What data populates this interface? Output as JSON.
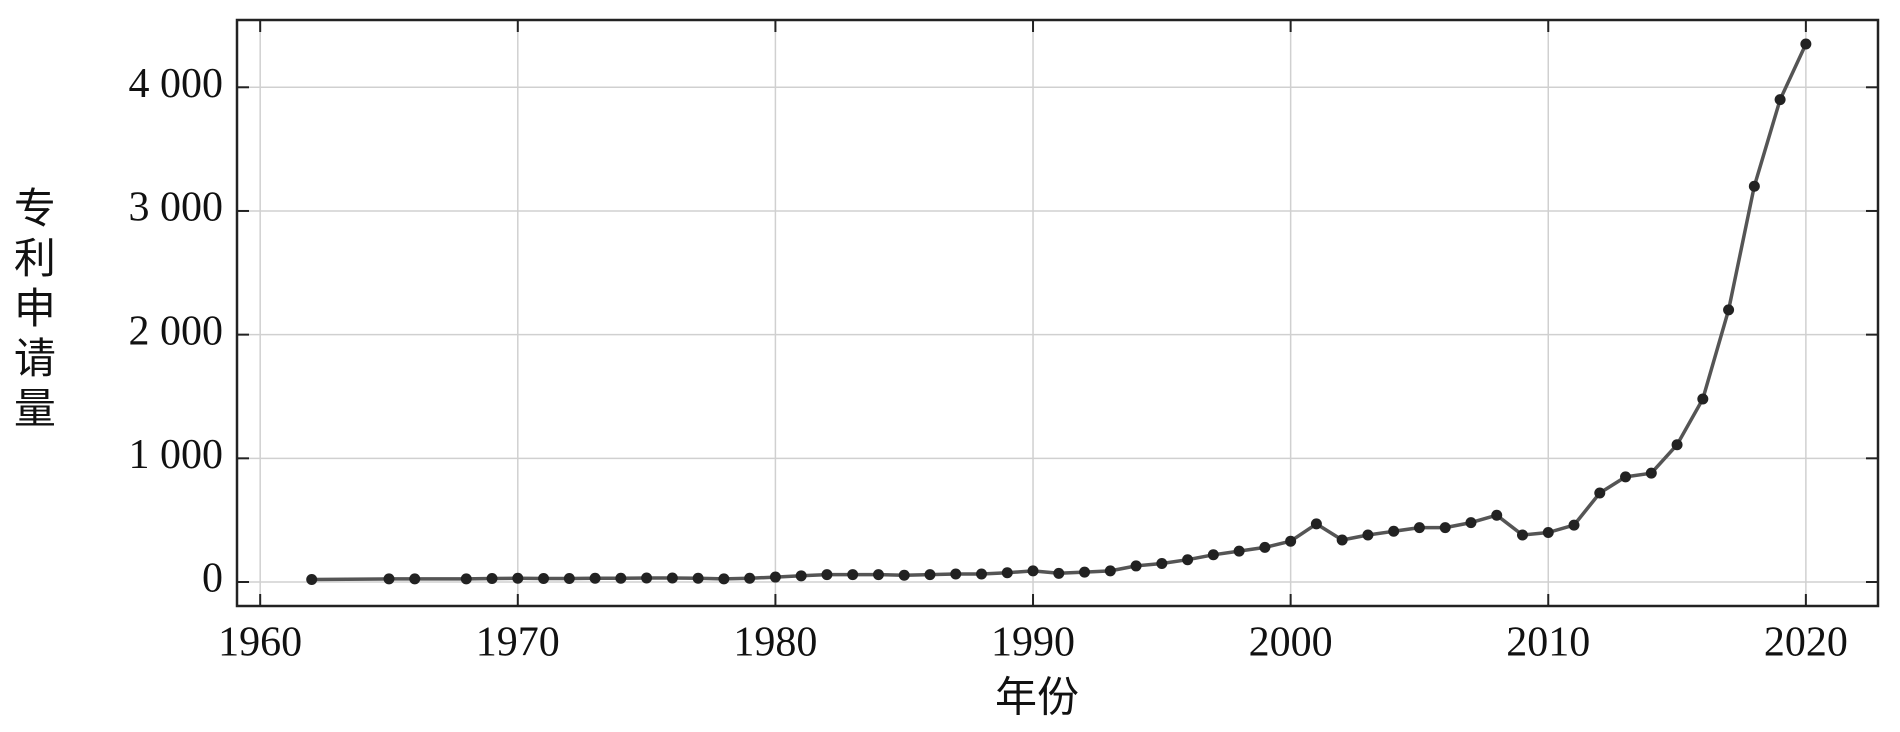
{
  "chart_data": {
    "type": "line",
    "x_label": "年份",
    "y_label": "专利申请量",
    "x": [
      1962,
      1965,
      1966,
      1968,
      1969,
      1970,
      1971,
      1972,
      1973,
      1974,
      1975,
      1976,
      1977,
      1978,
      1979,
      1980,
      1981,
      1982,
      1983,
      1984,
      1985,
      1986,
      1987,
      1988,
      1989,
      1990,
      1991,
      1992,
      1993,
      1994,
      1995,
      1996,
      1997,
      1998,
      1999,
      2000,
      2001,
      2002,
      2003,
      2004,
      2005,
      2006,
      2007,
      2008,
      2009,
      2010,
      2011,
      2012,
      2013,
      2014,
      2015,
      2016,
      2017,
      2018,
      2019,
      2020
    ],
    "values": [
      20,
      25,
      25,
      25,
      28,
      30,
      28,
      28,
      30,
      30,
      32,
      32,
      30,
      25,
      30,
      40,
      50,
      60,
      60,
      60,
      55,
      60,
      65,
      65,
      75,
      90,
      70,
      80,
      90,
      130,
      150,
      180,
      220,
      250,
      280,
      330,
      470,
      340,
      380,
      410,
      440,
      440,
      480,
      540,
      380,
      400,
      460,
      720,
      850,
      880,
      1110,
      1480,
      2200,
      3200,
      3900,
      4350
    ],
    "color": "#555555",
    "xlim": [
      1959.1,
      2022.8
    ],
    "xticks": [
      1960,
      1970,
      1980,
      1990,
      2000,
      2010,
      2020
    ],
    "ylim": [
      -194,
      4544
    ],
    "yticks": [
      0,
      {
        "value": 1000,
        "label": "1 000"
      },
      {
        "value": 2000,
        "label": "2 000"
      },
      {
        "value": 3000,
        "label": "3 000"
      },
      {
        "value": 4000,
        "label": "4 000"
      }
    ],
    "grid": true
  }
}
